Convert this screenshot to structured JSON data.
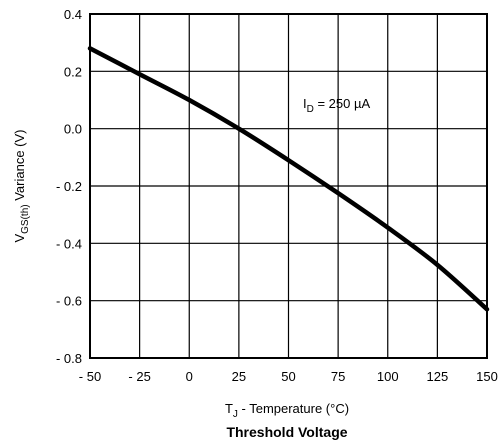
{
  "chart_data": {
    "type": "line",
    "title": "Threshold Voltage",
    "xlabel": {
      "main": "T",
      "sub": "J",
      "rest": " - Temperature (°C)"
    },
    "ylabel": {
      "main": "V",
      "sub": "GS(th)",
      "rest": " Variance (V)"
    },
    "xlim": [
      -50,
      150
    ],
    "ylim": [
      -0.8,
      0.4
    ],
    "x_ticks": [
      -50,
      -25,
      0,
      25,
      50,
      75,
      100,
      125,
      150
    ],
    "x_tick_labels": [
      "- 50",
      "- 25",
      "0",
      "25",
      "50",
      "75",
      "100",
      "125",
      "150"
    ],
    "y_ticks": [
      0.4,
      0.2,
      0.0,
      -0.2,
      -0.4,
      -0.6,
      -0.8
    ],
    "y_tick_labels": [
      "0.4",
      "0.2",
      "0.0",
      "- 0.2",
      "- 0.4",
      "- 0.6",
      "- 0.8"
    ],
    "grid": true,
    "annotation": {
      "main": "I",
      "sub": "D",
      "rest": " = 250 µA"
    },
    "series": [
      {
        "color": "#000000",
        "x": [
          -50,
          -25,
          0,
          25,
          50,
          75,
          100,
          125,
          150
        ],
        "y": [
          0.28,
          0.19,
          0.1,
          0.0,
          -0.11,
          -0.225,
          -0.345,
          -0.475,
          -0.63
        ]
      }
    ]
  }
}
